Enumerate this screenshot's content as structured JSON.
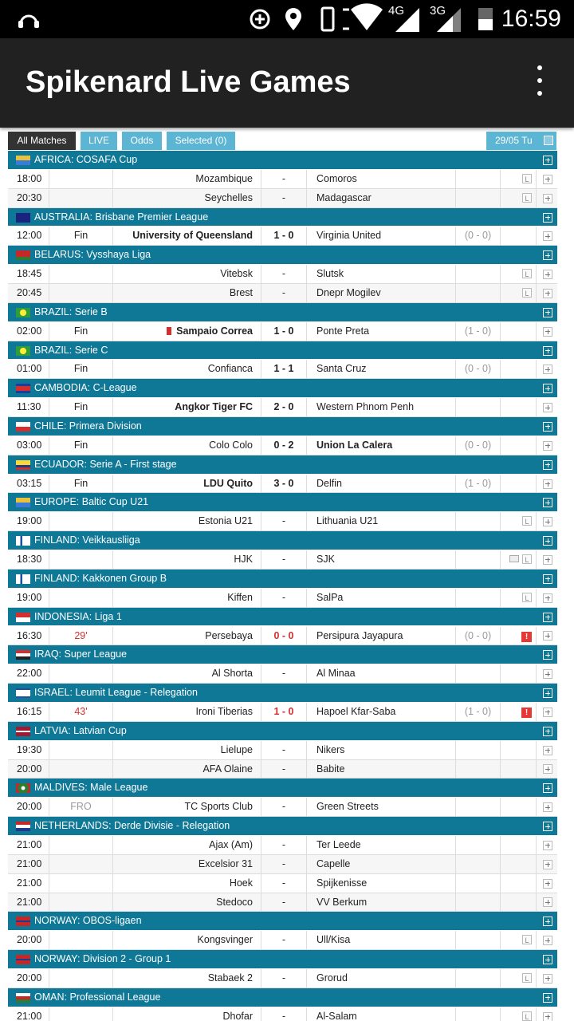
{
  "status_bar": {
    "time": "16:59",
    "network_labels": [
      "4G",
      "3G"
    ]
  },
  "app_bar": {
    "title": "Spikenard Live Games"
  },
  "tabs": [
    "All Matches",
    "LIVE",
    "Odds",
    "Selected (0)"
  ],
  "active_tab": 0,
  "date": "29/05 Tu",
  "leagues": [
    {
      "name": "AFRICA: COSAFA Cup",
      "matches": [
        {
          "time": "18:00",
          "home": "Mozambique",
          "score": "-",
          "away": "Comoros",
          "badge": "L"
        },
        {
          "time": "20:30",
          "home": "Seychelles",
          "score": "-",
          "away": "Madagascar",
          "badge": "L"
        }
      ]
    },
    {
      "name": "AUSTRALIA: Brisbane Premier League",
      "matches": [
        {
          "time": "12:00",
          "status": "Fin",
          "home": "University of Queensland",
          "score": "1 - 0",
          "away": "Virginia United",
          "ht": "(0 - 0)",
          "winner": "home"
        }
      ]
    },
    {
      "name": "BELARUS: Vysshaya Liga",
      "matches": [
        {
          "time": "18:45",
          "home": "Vitebsk",
          "score": "-",
          "away": "Slutsk",
          "badge": "L"
        },
        {
          "time": "20:45",
          "home": "Brest",
          "score": "-",
          "away": "Dnepr Mogilev",
          "badge": "L"
        }
      ]
    },
    {
      "name": "BRAZIL: Serie B",
      "matches": [
        {
          "time": "02:00",
          "status": "Fin",
          "home": "Sampaio Correa",
          "score": "1 - 0",
          "away": "Ponte Preta",
          "ht": "(1 - 0)",
          "winner": "home",
          "red_cards_home": 1
        }
      ]
    },
    {
      "name": "BRAZIL: Serie C",
      "matches": [
        {
          "time": "01:00",
          "status": "Fin",
          "home": "Confianca",
          "score": "1 - 1",
          "away": "Santa Cruz",
          "ht": "(0 - 0)"
        }
      ]
    },
    {
      "name": "CAMBODIA: C-League",
      "matches": [
        {
          "time": "11:30",
          "status": "Fin",
          "home": "Angkor Tiger FC",
          "score": "2 - 0",
          "away": "Western Phnom Penh",
          "winner": "home"
        }
      ]
    },
    {
      "name": "CHILE: Primera Division",
      "matches": [
        {
          "time": "03:00",
          "status": "Fin",
          "home": "Colo Colo",
          "score": "0 - 2",
          "away": "Union La Calera",
          "ht": "(0 - 0)",
          "winner": "away"
        }
      ]
    },
    {
      "name": "ECUADOR: Serie A - First stage",
      "matches": [
        {
          "time": "03:15",
          "status": "Fin",
          "home": "LDU Quito",
          "score": "3 - 0",
          "away": "Delfin",
          "ht": "(1 - 0)",
          "winner": "home"
        }
      ]
    },
    {
      "name": "EUROPE: Baltic Cup U21",
      "matches": [
        {
          "time": "19:00",
          "home": "Estonia U21",
          "score": "-",
          "away": "Lithuania U21",
          "badge": "L"
        }
      ]
    },
    {
      "name": "FINLAND: Veikkausliiga",
      "matches": [
        {
          "time": "18:30",
          "home": "HJK",
          "score": "-",
          "away": "SJK",
          "badge": "L",
          "tv": true
        }
      ]
    },
    {
      "name": "FINLAND: Kakkonen Group B",
      "matches": [
        {
          "time": "19:00",
          "home": "Kiffen",
          "score": "-",
          "away": "SalPa",
          "badge": "L"
        }
      ]
    },
    {
      "name": "INDONESIA: Liga 1",
      "matches": [
        {
          "time": "16:30",
          "status": "29'",
          "home": "Persebaya",
          "score": "0 - 0",
          "away": "Persipura Jayapura",
          "ht": "(0 - 0)",
          "alert": "!",
          "live": true
        }
      ]
    },
    {
      "name": "IRAQ: Super League",
      "matches": [
        {
          "time": "22:00",
          "home": "Al Shorta",
          "score": "-",
          "away": "Al Minaa"
        }
      ]
    },
    {
      "name": "ISRAEL: Leumit League - Relegation",
      "matches": [
        {
          "time": "16:15",
          "status": "43'",
          "home": "Ironi Tiberias",
          "score": "1 - 0",
          "away": "Hapoel Kfar-Saba",
          "ht": "(1 - 0)",
          "alert": "!",
          "live": true
        }
      ]
    },
    {
      "name": "LATVIA: Latvian Cup",
      "matches": [
        {
          "time": "19:30",
          "home": "Lielupe",
          "score": "-",
          "away": "Nikers"
        },
        {
          "time": "20:00",
          "home": "AFA Olaine",
          "score": "-",
          "away": "Babite"
        }
      ]
    },
    {
      "name": "MALDIVES: Male League",
      "matches": [
        {
          "time": "20:00",
          "status": "FRO",
          "home": "TC Sports Club",
          "score": "-",
          "away": "Green Streets"
        }
      ]
    },
    {
      "name": "NETHERLANDS: Derde Divisie - Relegation",
      "matches": [
        {
          "time": "21:00",
          "home": "Ajax (Am)",
          "score": "-",
          "away": "Ter Leede"
        },
        {
          "time": "21:00",
          "home": "Excelsior 31",
          "score": "-",
          "away": "Capelle"
        },
        {
          "time": "21:00",
          "home": "Hoek",
          "score": "-",
          "away": "Spijkenisse"
        },
        {
          "time": "21:00",
          "home": "Stedoco",
          "score": "-",
          "away": "VV Berkum"
        }
      ]
    },
    {
      "name": "NORWAY: OBOS-ligaen",
      "matches": [
        {
          "time": "20:00",
          "home": "Kongsvinger",
          "score": "-",
          "away": "Ull/Kisa",
          "badge": "L"
        }
      ]
    },
    {
      "name": "NORWAY: Division 2 - Group 1",
      "matches": [
        {
          "time": "20:00",
          "home": "Stabaek 2",
          "score": "-",
          "away": "Grorud",
          "badge": "L"
        }
      ]
    },
    {
      "name": "OMAN: Professional League",
      "matches": [
        {
          "time": "21:00",
          "home": "Dhofar",
          "score": "-",
          "away": "Al-Salam",
          "badge": "L"
        }
      ]
    }
  ]
}
